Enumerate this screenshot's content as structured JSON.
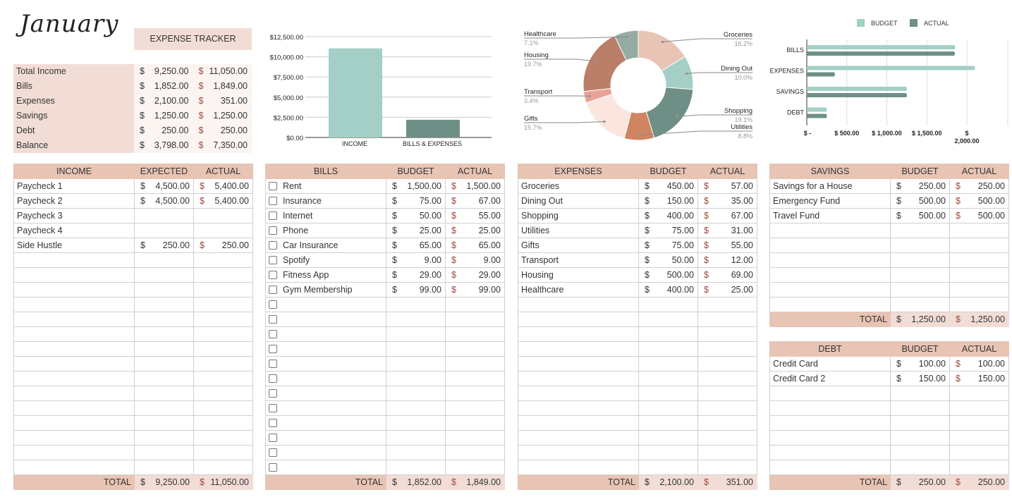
{
  "month": "January",
  "tracker_label": "EXPENSE TRACKER",
  "summary": [
    {
      "label": "Total Income",
      "expected": "9,250.00",
      "actual": "11,050.00"
    },
    {
      "label": "Bills",
      "expected": "1,852.00",
      "actual": "1,849.00"
    },
    {
      "label": "Expenses",
      "expected": "2,100.00",
      "actual": "351.00"
    },
    {
      "label": "Savings",
      "expected": "1,250.00",
      "actual": "1,250.00"
    },
    {
      "label": "Debt",
      "expected": "250.00",
      "actual": "250.00"
    },
    {
      "label": "Balance",
      "expected": "3,798.00",
      "actual": "7,350.00"
    }
  ],
  "currency": "$",
  "total_label": "TOTAL",
  "tables": {
    "income": {
      "headers": [
        "INCOME",
        "EXPECTED",
        "ACTUAL"
      ],
      "rows": [
        [
          "Paycheck 1",
          "4,500.00",
          "5,400.00"
        ],
        [
          "Paycheck 2",
          "4,500.00",
          "5,400.00"
        ],
        [
          "Paycheck 3",
          "",
          ""
        ],
        [
          "Paycheck 4",
          "",
          ""
        ],
        [
          "Side Hustle",
          "250.00",
          "250.00"
        ]
      ],
      "total": [
        "9,250.00",
        "11,050.00"
      ]
    },
    "bills": {
      "headers": [
        "BILLS",
        "BUDGET",
        "ACTUAL"
      ],
      "rows": [
        [
          "Rent",
          "1,500.00",
          "1,500.00"
        ],
        [
          "Insurance",
          "75.00",
          "67.00"
        ],
        [
          "Internet",
          "50.00",
          "55.00"
        ],
        [
          "Phone",
          "25.00",
          "25.00"
        ],
        [
          "Car Insurance",
          "65.00",
          "65.00"
        ],
        [
          "Spotify",
          "9.00",
          "9.00"
        ],
        [
          "Fitness App",
          "29.00",
          "29.00"
        ],
        [
          "Gym Membership",
          "99.00",
          "99.00"
        ]
      ],
      "total": [
        "1,852.00",
        "1,849.00"
      ]
    },
    "expenses": {
      "headers": [
        "EXPENSES",
        "BUDGET",
        "ACTUAL"
      ],
      "rows": [
        [
          "Groceries",
          "450.00",
          "57.00"
        ],
        [
          "Dining Out",
          "150.00",
          "35.00"
        ],
        [
          "Shopping",
          "400.00",
          "67.00"
        ],
        [
          "Utilities",
          "75.00",
          "31.00"
        ],
        [
          "Gifts",
          "75.00",
          "55.00"
        ],
        [
          "Transport",
          "50.00",
          "12.00"
        ],
        [
          "Housing",
          "500.00",
          "69.00"
        ],
        [
          "Healthcare",
          "400.00",
          "25.00"
        ]
      ],
      "total": [
        "2,100.00",
        "351.00"
      ]
    },
    "savings": {
      "headers": [
        "SAVINGS",
        "BUDGET",
        "ACTUAL"
      ],
      "rows": [
        [
          "Savings for a House",
          "250.00",
          "250.00"
        ],
        [
          "Emergency Fund",
          "500.00",
          "500.00"
        ],
        [
          "Travel Fund",
          "500.00",
          "500.00"
        ]
      ],
      "total": [
        "1,250.00",
        "1,250.00"
      ]
    },
    "debt": {
      "headers": [
        "DEBT",
        "BUDGET",
        "ACTUAL"
      ],
      "rows": [
        [
          "Credit Card",
          "100.00",
          "100.00"
        ],
        [
          "Credit Card 2",
          "150.00",
          "150.00"
        ]
      ],
      "total": [
        "250.00",
        "250.00"
      ]
    }
  },
  "chart_data": [
    {
      "type": "bar",
      "categories": [
        "INCOME",
        "BILLS & EXPENSES"
      ],
      "values": [
        11050,
        2200
      ],
      "ylim": [
        0,
        12500
      ],
      "yticks": [
        "$0.00",
        "$2,500.00",
        "$5,000.00",
        "$7,500.00",
        "$10,000.00",
        "$12,500.00"
      ],
      "colors": [
        "#a3cfc6",
        "#6e8f86"
      ],
      "grid": true
    },
    {
      "type": "pie",
      "donut": true,
      "labels": [
        "Groceries",
        "Dining Out",
        "Shopping",
        "Utilities",
        "Gifts",
        "Transport",
        "Housing",
        "Healthcare"
      ],
      "values": [
        16.2,
        10.0,
        19.1,
        8.8,
        15.7,
        3.4,
        19.7,
        7.1
      ],
      "value_labels": [
        "16.2%",
        "10.0%",
        "19.1%",
        "8.8%",
        "15.7%",
        "3.4%",
        "19.7%",
        "7.1%"
      ],
      "colors": [
        "#e8c4b4",
        "#a3cfc6",
        "#6e8f86",
        "#d08560",
        "#fbe6df",
        "#e8a396",
        "#bb7e68",
        "#96aca2"
      ]
    },
    {
      "type": "bar",
      "orientation": "horizontal",
      "categories": [
        "BILLS",
        "EXPENSES",
        "SAVINGS",
        "DEBT"
      ],
      "series": [
        {
          "name": "BUDGET",
          "values": [
            1852,
            2100,
            1250,
            250
          ],
          "color": "#a3cfc6"
        },
        {
          "name": "ACTUAL",
          "values": [
            1849,
            351,
            1250,
            250
          ],
          "color": "#6e8f86"
        }
      ],
      "xlim": [
        0,
        2500
      ],
      "xticks": [
        "$ -",
        "$ 500.00",
        "$ 1,000.00",
        "$ 1,500.00",
        "$ 2,000.00"
      ],
      "legend": "top",
      "grid": true
    }
  ]
}
